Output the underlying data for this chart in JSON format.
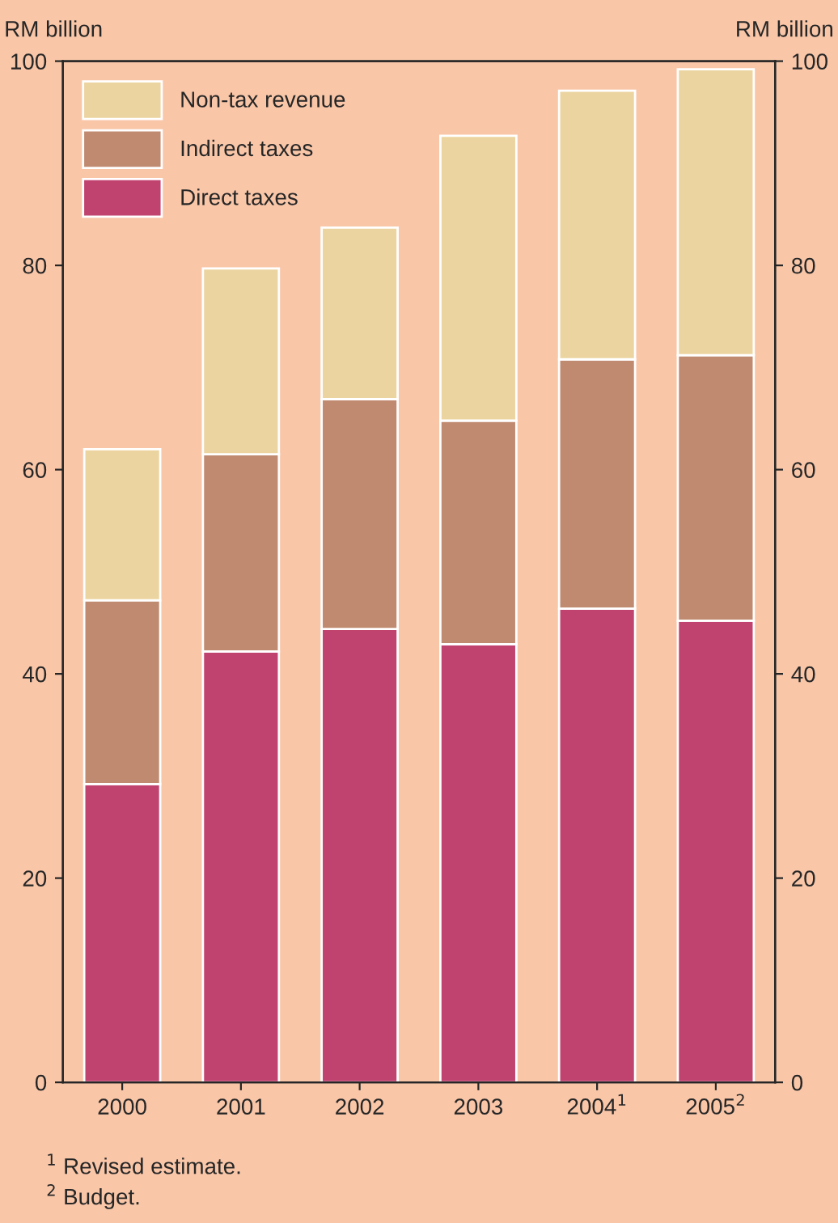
{
  "chart_data": {
    "type": "bar",
    "stacked": true,
    "categories": [
      "2000",
      "2001",
      "2002",
      "2003",
      "2004$^{1}$",
      "2005$^{2}$"
    ],
    "series": [
      {
        "name": "Direct taxes",
        "color": "#c0426e",
        "values": [
          29.2,
          42.2,
          44.4,
          42.9,
          46.4,
          45.2
        ]
      },
      {
        "name": "Indirect taxes",
        "color": "#c08a70",
        "values": [
          18.0,
          19.3,
          22.5,
          21.9,
          24.4,
          26.0
        ]
      },
      {
        "name": "Non-tax revenue",
        "color": "#ecd4a0",
        "values": [
          14.8,
          18.2,
          16.8,
          27.9,
          26.3,
          28.0
        ]
      }
    ],
    "ylabel": "RM billion",
    "y2label": "RM billion",
    "ylim": [
      0,
      100
    ],
    "yticks": [
      0,
      20,
      40,
      60,
      80,
      100
    ],
    "y2lim": [
      0,
      100
    ],
    "y2ticks": [
      0,
      20,
      40,
      60,
      80,
      100
    ],
    "legend": "top left",
    "annotations": [
      "$^{1}$ Revised estimate.",
      "$^{2}$ Budget."
    ]
  }
}
